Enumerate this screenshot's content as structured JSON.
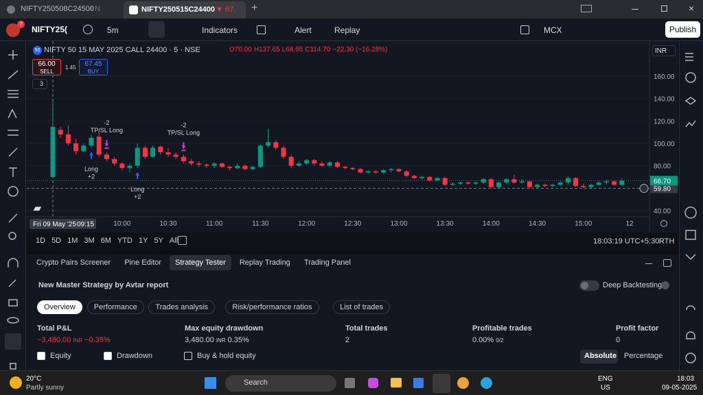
{
  "tabs": [
    "NIFTY250508C24500",
    "NIFTY250515C24400"
  ],
  "tab_suffix": "/ N",
  "tab_price": "67.",
  "toolbar": {
    "avatar_badge": "7",
    "symbol": "NIFTY25(",
    "interval": "5m",
    "indicators": "Indicators",
    "alert": "Alert",
    "replay": "Replay",
    "exchange": "MCX",
    "publish": "Publish"
  },
  "legend": {
    "symbol_badge": "50",
    "title": "NIFTY 50 15 MAY 2025 CALL 24400 · 5 · NSE",
    "ohlc": [
      "O70.00",
      "H137.65",
      "L68.65",
      "C114.70",
      "−22.30 (−16.28%)"
    ],
    "sell_price": "66.00",
    "sell": "SELL",
    "spread": "1.45",
    "buy_price": "67.45",
    "buy": "BUY",
    "collapse": "3"
  },
  "currency": "INR",
  "chart_data": {
    "type": "candlestick",
    "categories": [
      "09:15",
      null,
      null,
      null,
      null,
      null,
      null,
      null,
      null,
      "10:00",
      null,
      null,
      null,
      null,
      null,
      "10:30",
      null,
      null,
      null,
      null,
      null,
      "11:00",
      null,
      null,
      null,
      null,
      null,
      "11:30",
      null,
      null,
      null,
      null,
      null,
      "12:00",
      null,
      null,
      null,
      null,
      null,
      "12:30",
      null,
      null,
      null,
      null,
      null,
      "13:00",
      null,
      null,
      null,
      null,
      null,
      "13:30",
      null,
      null,
      null,
      null,
      null,
      "14:00",
      null,
      null,
      null,
      null,
      null,
      "14:30",
      null,
      null,
      null,
      null,
      null,
      "15:00",
      null,
      null,
      null,
      null,
      null
    ],
    "open": [
      70,
      112,
      108,
      100,
      93,
      98,
      106,
      90,
      86,
      82,
      78,
      80,
      96,
      88,
      97,
      92,
      90,
      88,
      84,
      82,
      81,
      80,
      82,
      79,
      78,
      80,
      77,
      79,
      98,
      101,
      96,
      88,
      80,
      82,
      85,
      82,
      80,
      83,
      79,
      78,
      77,
      74,
      75,
      74,
      76,
      77,
      75,
      71,
      69,
      70,
      67,
      69,
      63,
      64,
      65,
      64,
      65,
      68,
      61,
      65,
      68,
      65,
      66,
      61,
      63,
      62,
      63,
      65,
      69,
      62,
      61,
      63,
      65,
      66,
      63
    ],
    "high": [
      137.65,
      115,
      116,
      104,
      100,
      108,
      110,
      92,
      88,
      83,
      82,
      100,
      98,
      98,
      98,
      96,
      92,
      90,
      86,
      84,
      82,
      83,
      83,
      80,
      82,
      81,
      80,
      99,
      113,
      103,
      98,
      90,
      84,
      86,
      86,
      84,
      84,
      84,
      80,
      79,
      78,
      76,
      76,
      77,
      78,
      78,
      76,
      72,
      71,
      71,
      70,
      70,
      65,
      66,
      66,
      66,
      69,
      69,
      66,
      69,
      72,
      68,
      67,
      64,
      64,
      64,
      66,
      71,
      70,
      64,
      64,
      66,
      67,
      67,
      69
    ],
    "low": [
      68.65,
      105,
      98,
      90,
      92,
      96,
      88,
      84,
      80,
      76,
      74,
      78,
      86,
      87,
      90,
      88,
      86,
      82,
      80,
      79,
      78,
      78,
      78,
      76,
      77,
      76,
      76,
      78,
      96,
      94,
      86,
      78,
      79,
      81,
      80,
      79,
      79,
      78,
      77,
      76,
      73,
      73,
      73,
      73,
      74,
      74,
      70,
      68,
      68,
      66,
      66,
      62,
      62,
      63,
      63,
      63,
      64,
      60,
      60,
      64,
      64,
      64,
      60,
      60,
      61,
      61,
      62,
      63,
      61,
      60,
      60,
      62,
      63,
      62,
      62
    ],
    "close": [
      114.7,
      108,
      100,
      93,
      98,
      105,
      90,
      86,
      82,
      78,
      80,
      96,
      88,
      96,
      92,
      90,
      88,
      84,
      82,
      81,
      80,
      82,
      79,
      78,
      80,
      77,
      79,
      98,
      101,
      96,
      88,
      80,
      82,
      85,
      82,
      80,
      83,
      79,
      78,
      77,
      74,
      75,
      74,
      76,
      77,
      75,
      71,
      69,
      70,
      67,
      69,
      63,
      64,
      65,
      64,
      65,
      68,
      61,
      65,
      68,
      65,
      66,
      61,
      63,
      62,
      63,
      65,
      69,
      62,
      61,
      63,
      65,
      66,
      63,
      66.7
    ],
    "up_color": "#089981",
    "down_color": "#f23645",
    "ylim": [
      34.5,
      188.8
    ],
    "yticks": [
      {
        "value": 40,
        "label": "40.00"
      },
      {
        "value": 80,
        "label": "80.00"
      },
      {
        "value": 100,
        "label": "100.00"
      },
      {
        "value": 120,
        "label": "120.00"
      },
      {
        "value": 140,
        "label": "140.00"
      },
      {
        "value": 160,
        "label": "160.00"
      }
    ],
    "crosshair_date": "Fri 09 May '25",
    "next_day_label": "12",
    "last_price": {
      "value": 66.7,
      "label": "66.70"
    },
    "crosshair_price": {
      "value": 59.8,
      "label": "59.80"
    },
    "annotations": [
      {
        "index": 5,
        "lines": [
          "Long",
          "+2"
        ],
        "side": "below"
      },
      {
        "index": 7,
        "lines": [
          "-2",
          "TP/SL Long"
        ],
        "side": "above"
      },
      {
        "index": 11,
        "lines": [
          "Long",
          "+2"
        ],
        "side": "below"
      },
      {
        "index": 17,
        "lines": [
          "-2",
          "TP/SL Long"
        ],
        "side": "above"
      }
    ]
  },
  "timeframes": [
    "1D",
    "5D",
    "1M",
    "3M",
    "6M",
    "YTD",
    "1Y",
    "5Y",
    "All"
  ],
  "clock": "18:03:19 UTC+5:30",
  "session": "RTH",
  "panel_tabs": [
    "Crypto Pairs Screener",
    "Pine Editor",
    "Strategy Tester",
    "Replay Trading",
    "Trading Panel"
  ],
  "strategy": {
    "name": "New Master Strategy by Avtar report",
    "deep": "Deep Backtesting",
    "tabs": [
      "Overview",
      "Performance",
      "Trades analysis",
      "Risk/performance ratios",
      "List of trades"
    ],
    "metrics": [
      {
        "label": "Total P&L",
        "value": "−3,480.00",
        "unit": "INR",
        "pct": "−0.35%"
      },
      {
        "label": "Max equity drawdown",
        "value": "3,480.00",
        "unit": "INR",
        "pct": "0.35%"
      },
      {
        "label": "Total trades",
        "value": "2"
      },
      {
        "label": "Profitable trades",
        "value": "0.00%",
        "unit": "0/2"
      },
      {
        "label": "Profit factor",
        "value": "0"
      }
    ],
    "checks": [
      "Equity",
      "Drawdown",
      "Buy & hold equity"
    ],
    "modes": [
      "Absolute",
      "Percentage"
    ]
  },
  "taskbar": {
    "temp": "20°C",
    "weather": "Partly sunny",
    "search": "Search",
    "lang": "ENG",
    "region": "US",
    "time": "18:03",
    "date": "09-05-2025"
  }
}
